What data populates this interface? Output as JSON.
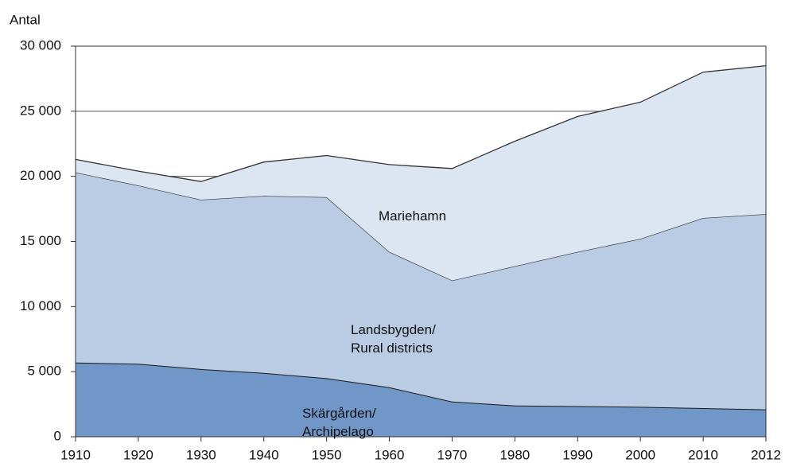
{
  "chart_data": {
    "type": "stacked_area",
    "y_axis_label": "Antal",
    "categories": [
      "1910",
      "1920",
      "1930",
      "1940",
      "1950",
      "1960",
      "1970",
      "1980",
      "1990",
      "2000",
      "2010",
      "2012"
    ],
    "series": [
      {
        "name": "Skärgården/\nArchipelago",
        "color": "#7097c8",
        "values": [
          5700,
          5600,
          5200,
          4900,
          4500,
          3800,
          2700,
          2400,
          2350,
          2300,
          2200,
          2100
        ]
      },
      {
        "name": "Landsbygden/\nRural districts",
        "color": "#b9cce4",
        "values": [
          14600,
          13700,
          13000,
          13600,
          13900,
          10400,
          9300,
          10700,
          11850,
          12900,
          14600,
          15000
        ]
      },
      {
        "name": "Mariehamn",
        "color": "#dce6f2",
        "values": [
          1000,
          1100,
          1400,
          2600,
          3200,
          6700,
          8600,
          9600,
          10400,
          10500,
          11200,
          11400
        ]
      }
    ],
    "ylim": [
      0,
      30000
    ],
    "yticks": [
      0,
      {
        "value": 5000,
        "label": "5 000"
      },
      {
        "value": 10000,
        "label": "10 000"
      },
      {
        "value": 15000,
        "label": "15 000"
      },
      {
        "value": 20000,
        "label": "20 000"
      },
      {
        "value": 25000,
        "label": "25 000"
      },
      {
        "value": 30000,
        "label": "30 000"
      }
    ],
    "grid": true
  }
}
